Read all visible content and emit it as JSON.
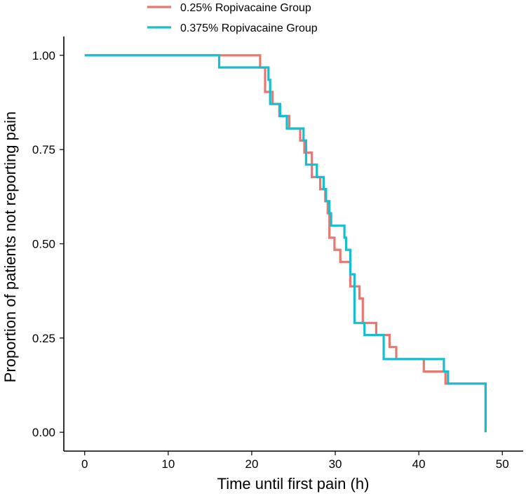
{
  "chart_data": {
    "type": "line",
    "subtype": "kaplan-meier step",
    "title": "",
    "xlabel": "Time until first pain (h)",
    "ylabel": "Proportion of patients not reporting pain",
    "xlim": [
      -2.5,
      52.5
    ],
    "ylim": [
      -0.05,
      1.05
    ],
    "xticks": [
      0,
      10,
      20,
      30,
      40,
      50
    ],
    "xtick_labels": [
      "0",
      "10",
      "20",
      "30",
      "40",
      "50"
    ],
    "yticks": [
      0,
      0.25,
      0.5,
      0.75,
      1.0
    ],
    "ytick_labels": [
      "0.00",
      "0.25",
      "0.50",
      "0.75",
      "1.00"
    ],
    "grid": false,
    "legend_position": "top",
    "series": [
      {
        "name": "0.25% Ropivacaine Group",
        "color": "#E8776F",
        "x": [
          0,
          21.0,
          21.6,
          22.5,
          23.3,
          24.5,
          25.8,
          26.3,
          27.2,
          28.2,
          28.8,
          29.1,
          29.3,
          29.9,
          30.6,
          31.8,
          32.9,
          33.3,
          34.9,
          36.5,
          37.3,
          40.6,
          43.2,
          48.0,
          48.0
        ],
        "y": [
          1.0,
          0.968,
          0.903,
          0.871,
          0.839,
          0.806,
          0.774,
          0.742,
          0.677,
          0.645,
          0.613,
          0.581,
          0.516,
          0.484,
          0.452,
          0.387,
          0.355,
          0.29,
          0.258,
          0.226,
          0.194,
          0.161,
          0.129,
          0.129,
          0.0
        ]
      },
      {
        "name": "0.375% Ropivacaine Group",
        "color": "#17BECF",
        "x": [
          0,
          16.1,
          22.0,
          22.2,
          23.4,
          24.2,
          26.2,
          26.5,
          27.8,
          28.6,
          28.9,
          29.3,
          29.5,
          31.1,
          31.3,
          31.8,
          32.3,
          33.5,
          35.8,
          43.0,
          43.5,
          48.0,
          48.0
        ],
        "y": [
          1.0,
          0.968,
          0.935,
          0.871,
          0.839,
          0.806,
          0.774,
          0.71,
          0.677,
          0.645,
          0.613,
          0.581,
          0.548,
          0.516,
          0.484,
          0.419,
          0.29,
          0.258,
          0.194,
          0.161,
          0.129,
          0.129,
          0.0
        ]
      }
    ]
  }
}
